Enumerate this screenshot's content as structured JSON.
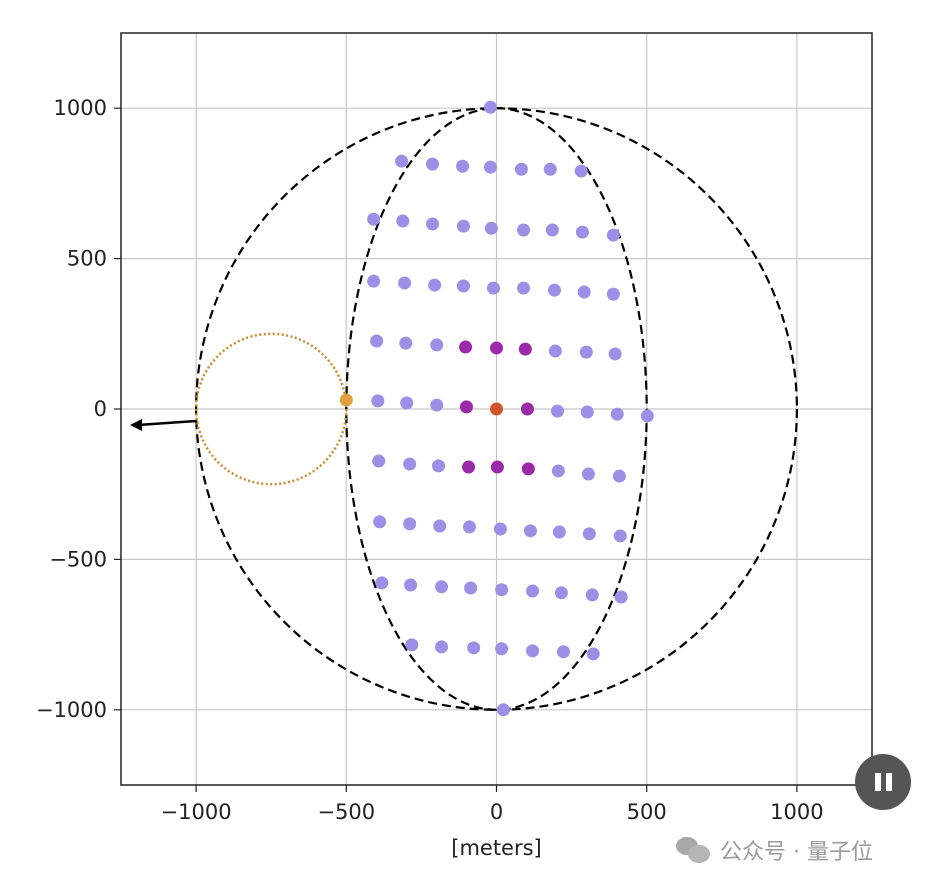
{
  "chart_data": {
    "type": "scatter",
    "title": "",
    "xlabel": "[meters]",
    "ylabel": "",
    "xlim": [
      -1250,
      1250
    ],
    "ylim": [
      -1250,
      1250
    ],
    "grid": true,
    "xticks": [
      -1000,
      -500,
      0,
      500,
      1000
    ],
    "yticks": [
      -1000,
      -500,
      0,
      500,
      1000
    ],
    "xtick_labels": [
      "−1000",
      "−500",
      "0",
      "500",
      "1000"
    ],
    "ytick_labels": [
      "−1000",
      "−500",
      "0",
      "500",
      "1000"
    ],
    "shapes": [
      {
        "name": "outer-circle",
        "kind": "ellipse",
        "center": [
          0,
          0
        ],
        "rx": 1000,
        "ry": 1000,
        "style": "dashed",
        "color": "#000000"
      },
      {
        "name": "inner-ellipse",
        "kind": "ellipse",
        "center": [
          0,
          0
        ],
        "rx": 500,
        "ry": 1000,
        "style": "dashed",
        "color": "#000000"
      },
      {
        "name": "small-orbit-circle",
        "kind": "ellipse",
        "center": [
          -750,
          0
        ],
        "rx": 250,
        "ry": 250,
        "style": "dotted",
        "color": "#c98a2e"
      }
    ],
    "arrow": {
      "from": [
        -1000,
        -40
      ],
      "to": [
        -1220,
        -53
      ],
      "color": "#000000"
    },
    "series": [
      {
        "name": "outer-points",
        "color": "#9b8fe6",
        "points": [
          [
            -20,
            1003
          ],
          [
            23,
            -1000
          ],
          [
            -316,
            824
          ],
          [
            -213,
            814
          ],
          [
            -113,
            807
          ],
          [
            -20,
            804
          ],
          [
            83,
            797
          ],
          [
            179,
            797
          ],
          [
            282,
            791
          ],
          [
            -409,
            631
          ],
          [
            -312,
            625
          ],
          [
            -213,
            615
          ],
          [
            -110,
            608
          ],
          [
            -17,
            601
          ],
          [
            90,
            595
          ],
          [
            186,
            595
          ],
          [
            286,
            588
          ],
          [
            389,
            578
          ],
          [
            -409,
            425
          ],
          [
            -306,
            419
          ],
          [
            -206,
            412
          ],
          [
            -110,
            409
          ],
          [
            -10,
            402
          ],
          [
            90,
            402
          ],
          [
            193,
            395
          ],
          [
            292,
            389
          ],
          [
            389,
            382
          ],
          [
            -399,
            226
          ],
          [
            -302,
            219
          ],
          [
            -199,
            213
          ],
          [
            196,
            193
          ],
          [
            299,
            189
          ],
          [
            395,
            183
          ],
          [
            -395,
            27
          ],
          [
            -299,
            20
          ],
          [
            -199,
            13
          ],
          [
            203,
            -7
          ],
          [
            302,
            -10
          ],
          [
            402,
            -17
          ],
          [
            502,
            -23
          ],
          [
            -392,
            -173
          ],
          [
            -289,
            -183
          ],
          [
            -193,
            -189
          ],
          [
            206,
            -206
          ],
          [
            306,
            -216
          ],
          [
            409,
            -223
          ],
          [
            -389,
            -375
          ],
          [
            -289,
            -382
          ],
          [
            -189,
            -389
          ],
          [
            -90,
            -392
          ],
          [
            13,
            -399
          ],
          [
            113,
            -405
          ],
          [
            209,
            -409
          ],
          [
            309,
            -415
          ],
          [
            412,
            -422
          ],
          [
            -382,
            -578
          ],
          [
            -286,
            -585
          ],
          [
            -183,
            -591
          ],
          [
            -86,
            -595
          ],
          [
            17,
            -601
          ],
          [
            120,
            -605
          ],
          [
            216,
            -611
          ],
          [
            319,
            -618
          ],
          [
            415,
            -625
          ],
          [
            -282,
            -784
          ],
          [
            -183,
            -791
          ],
          [
            -76,
            -794
          ],
          [
            17,
            -797
          ],
          [
            120,
            -804
          ],
          [
            223,
            -807
          ],
          [
            322,
            -814
          ]
        ]
      },
      {
        "name": "inner-points",
        "color": "#9a2aa8",
        "points": [
          [
            -103,
            206
          ],
          [
            0,
            203
          ],
          [
            96,
            199
          ],
          [
            -100,
            7
          ],
          [
            103,
            0
          ],
          [
            -93,
            -193
          ],
          [
            3,
            -193
          ],
          [
            106,
            -199
          ]
        ]
      },
      {
        "name": "center-point",
        "color": "#d0562a",
        "points": [
          [
            0,
            0
          ]
        ]
      },
      {
        "name": "orbit-point",
        "color": "#e0a040",
        "points": [
          [
            -500,
            30
          ]
        ]
      }
    ]
  },
  "watermark": {
    "text": "公众号 · 量子位"
  }
}
